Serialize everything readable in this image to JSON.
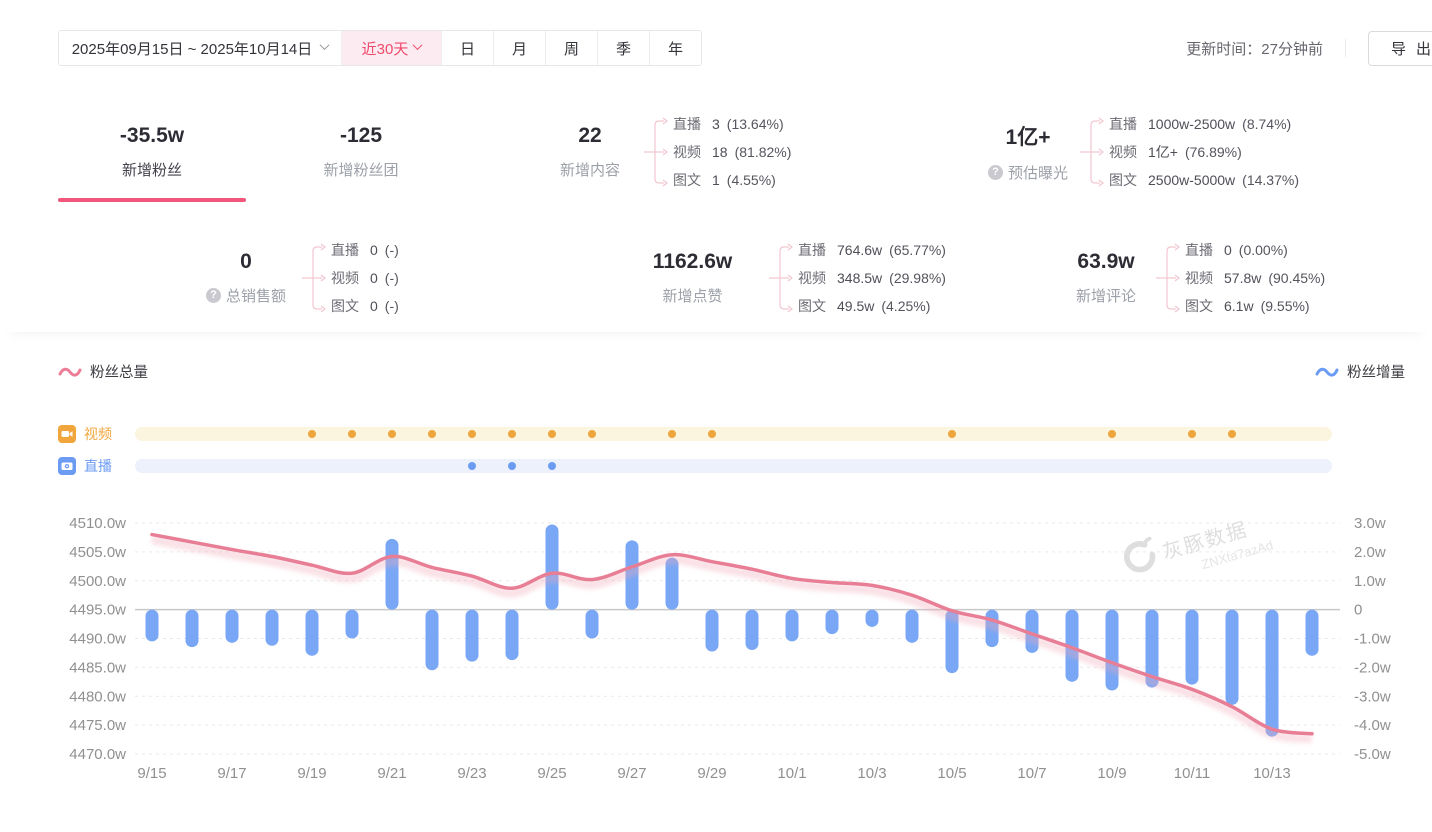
{
  "header": {
    "date_range": "2025年09月15日 ~ 2025年10月14日",
    "quick_range": "近30天",
    "period_tabs": [
      "日",
      "月",
      "周",
      "季",
      "年"
    ],
    "update_time_label": "更新时间：27分钟前",
    "export_label": "导出"
  },
  "icons": {
    "date_caret": "chevron-down",
    "quick_caret": "chevron-down",
    "help": "question-mark",
    "video_row": "video-camera",
    "live_row": "live-camera",
    "legend_marker": "wave"
  },
  "colors": {
    "accent_pink": "#EF4A6E",
    "active_underline": "#F2577B",
    "line_pink": "#E87E95",
    "bar_blue": "#79A7F5",
    "video_orange": "#F0A63C",
    "live_blue": "#6B9BF3",
    "quick_bg": "#FCEBF0"
  },
  "stats": {
    "row1": [
      {
        "value": "-35.5w",
        "label": "新增粉丝",
        "active": true
      },
      {
        "value": "-125",
        "label": "新增粉丝团"
      },
      {
        "value": "22",
        "label": "新增内容",
        "breakdown": [
          {
            "name": "直播",
            "value": "3",
            "pct": "(13.64%)"
          },
          {
            "name": "视频",
            "value": "18",
            "pct": "(81.82%)"
          },
          {
            "name": "图文",
            "value": "1",
            "pct": "(4.55%)"
          }
        ]
      },
      {
        "value": "1亿+",
        "label": "预估曝光",
        "help": true,
        "breakdown": [
          {
            "name": "直播",
            "value": "1000w-2500w",
            "pct": "(8.74%)"
          },
          {
            "name": "视频",
            "value": "1亿+",
            "pct": "(76.89%)"
          },
          {
            "name": "图文",
            "value": "2500w-5000w",
            "pct": "(14.37%)"
          }
        ]
      }
    ],
    "row2": [
      {
        "value": "0",
        "label": "总销售额",
        "help": true,
        "breakdown": [
          {
            "name": "直播",
            "value": "0",
            "pct": "(-)"
          },
          {
            "name": "视频",
            "value": "0",
            "pct": "(-)"
          },
          {
            "name": "图文",
            "value": "0",
            "pct": "(-)"
          }
        ]
      },
      {
        "value": "1162.6w",
        "label": "新增点赞",
        "breakdown": [
          {
            "name": "直播",
            "value": "764.6w",
            "pct": "(65.77%)"
          },
          {
            "name": "视频",
            "value": "348.5w",
            "pct": "(29.98%)"
          },
          {
            "name": "图文",
            "value": "49.5w",
            "pct": "(4.25%)"
          }
        ]
      },
      {
        "value": "63.9w",
        "label": "新增评论",
        "breakdown": [
          {
            "name": "直播",
            "value": "0",
            "pct": "(0.00%)"
          },
          {
            "name": "视频",
            "value": "57.8w",
            "pct": "(90.45%)"
          },
          {
            "name": "图文",
            "value": "6.1w",
            "pct": "(9.55%)"
          }
        ]
      }
    ]
  },
  "legend": {
    "left": "粉丝总量",
    "right": "粉丝增量"
  },
  "chart_data": {
    "type": "line+bar",
    "x": [
      "9/15",
      "9/16",
      "9/17",
      "9/18",
      "9/19",
      "9/20",
      "9/21",
      "9/22",
      "9/23",
      "9/24",
      "9/25",
      "9/26",
      "9/27",
      "9/28",
      "9/29",
      "9/30",
      "10/1",
      "10/2",
      "10/3",
      "10/4",
      "10/5",
      "10/6",
      "10/7",
      "10/8",
      "10/9",
      "10/10",
      "10/11",
      "10/12",
      "10/13",
      "10/14"
    ],
    "x_tick_labels": [
      "9/15",
      "9/17",
      "9/19",
      "9/21",
      "9/23",
      "9/25",
      "9/27",
      "9/29",
      "10/1",
      "10/3",
      "10/5",
      "10/7",
      "10/9",
      "10/11",
      "10/13"
    ],
    "series": [
      {
        "name": "粉丝总量",
        "type": "line",
        "axis": "left",
        "color": "#E87E95",
        "values": [
          4508.0,
          4506.7,
          4505.4,
          4504.2,
          4502.7,
          4501.3,
          4504.2,
          4502.3,
          4500.8,
          4498.7,
          4501.3,
          4500.2,
          4502.4,
          4504.5,
          4503.3,
          4502.0,
          4500.4,
          4499.7,
          4499.2,
          4497.5,
          4494.8,
          4493.2,
          4490.8,
          4488.4,
          4485.8,
          4483.4,
          4481.2,
          4478.2,
          4474.3,
          4473.5
        ]
      },
      {
        "name": "粉丝增量",
        "type": "bar",
        "axis": "right",
        "color": "#79A7F5",
        "values": [
          -1.1,
          -1.3,
          -1.15,
          -1.25,
          -1.6,
          -1.0,
          2.45,
          -2.1,
          -1.8,
          -1.75,
          2.95,
          -1.0,
          2.4,
          1.8,
          -1.45,
          -1.4,
          -1.1,
          -0.85,
          -0.6,
          -1.15,
          -2.2,
          -1.3,
          -1.5,
          -2.5,
          -2.8,
          -2.7,
          -2.6,
          -3.3,
          -4.4,
          -1.6
        ]
      }
    ],
    "left_axis": {
      "ticks": [
        "4510.0w",
        "4505.0w",
        "4500.0w",
        "4495.0w",
        "4490.0w",
        "4485.0w",
        "4480.0w",
        "4475.0w",
        "4470.0w"
      ],
      "min": 4470,
      "max": 4510
    },
    "right_axis": {
      "ticks": [
        "3.0w",
        "2.0w",
        "1.0w",
        "0",
        "-1.0w",
        "-2.0w",
        "-3.0w",
        "-4.0w",
        "-5.0w"
      ],
      "min": -5,
      "max": 3
    },
    "grid": "dashed",
    "markers": {
      "video": {
        "label": "视频",
        "days": [
          "9/19",
          "9/20",
          "9/21",
          "9/22",
          "9/23",
          "9/24",
          "9/25",
          "9/26",
          "9/28",
          "9/29",
          "10/5",
          "10/9",
          "10/11",
          "10/12"
        ]
      },
      "live": {
        "label": "直播",
        "days": [
          "9/23",
          "9/24",
          "9/25"
        ]
      }
    },
    "watermark": {
      "brand": "灰豚数据",
      "code": "ZNXta7azAd"
    }
  }
}
